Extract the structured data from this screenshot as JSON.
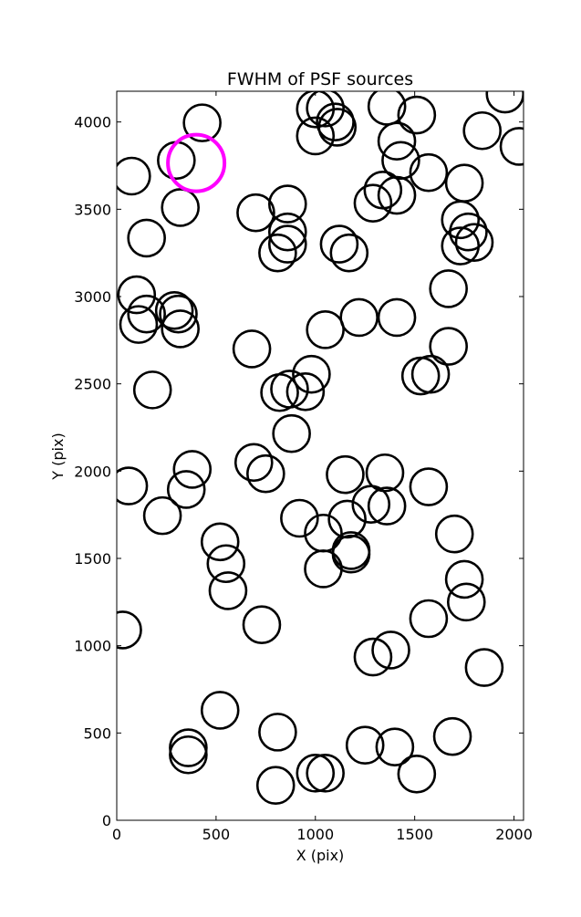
{
  "chart_data": {
    "type": "scatter",
    "title": "FWHM of PSF sources",
    "xlabel": "X (pix)",
    "ylabel": "Y (pix)",
    "xlim": [
      0,
      2048
    ],
    "ylim": [
      0,
      4176
    ],
    "xticks": [
      0,
      500,
      1000,
      1500,
      2000
    ],
    "yticks": [
      0,
      500,
      1000,
      1500,
      2000,
      2500,
      3000,
      3500,
      4000
    ],
    "marker": "open circle",
    "grid": false,
    "series": [
      {
        "color": "#000000",
        "points": [
          [
            430,
            3995
          ],
          [
            1000,
            4075
          ],
          [
            1050,
            4080
          ],
          [
            1100,
            4000
          ],
          [
            1110,
            3970
          ],
          [
            1360,
            4090
          ],
          [
            1510,
            4040
          ],
          [
            1955,
            4160
          ],
          [
            2025,
            3860
          ],
          [
            1840,
            3950
          ],
          [
            75,
            3690
          ],
          [
            300,
            3780
          ],
          [
            320,
            3510
          ],
          [
            150,
            3335
          ],
          [
            1000,
            3920
          ],
          [
            1410,
            3890
          ],
          [
            1430,
            3780
          ],
          [
            1570,
            3710
          ],
          [
            1750,
            3650
          ],
          [
            1340,
            3610
          ],
          [
            1410,
            3580
          ],
          [
            1290,
            3535
          ],
          [
            700,
            3480
          ],
          [
            860,
            3530
          ],
          [
            860,
            3370
          ],
          [
            860,
            3300
          ],
          [
            810,
            3250
          ],
          [
            1120,
            3300
          ],
          [
            1170,
            3250
          ],
          [
            1730,
            3440
          ],
          [
            1730,
            3290
          ],
          [
            1770,
            3370
          ],
          [
            1800,
            3310
          ],
          [
            100,
            3010
          ],
          [
            150,
            2900
          ],
          [
            110,
            2840
          ],
          [
            290,
            2920
          ],
          [
            310,
            2900
          ],
          [
            320,
            2815
          ],
          [
            1050,
            2810
          ],
          [
            1220,
            2880
          ],
          [
            1410,
            2880
          ],
          [
            1670,
            3045
          ],
          [
            1670,
            2715
          ],
          [
            680,
            2700
          ],
          [
            180,
            2465
          ],
          [
            1530,
            2545
          ],
          [
            1580,
            2555
          ],
          [
            980,
            2555
          ],
          [
            820,
            2450
          ],
          [
            870,
            2470
          ],
          [
            950,
            2455
          ],
          [
            880,
            2215
          ],
          [
            60,
            1915
          ],
          [
            690,
            2050
          ],
          [
            750,
            1985
          ],
          [
            380,
            2010
          ],
          [
            350,
            1895
          ],
          [
            230,
            1745
          ],
          [
            1150,
            1980
          ],
          [
            1350,
            1990
          ],
          [
            1360,
            1800
          ],
          [
            1280,
            1810
          ],
          [
            1570,
            1910
          ],
          [
            920,
            1730
          ],
          [
            1040,
            1645
          ],
          [
            1160,
            1725
          ],
          [
            1700,
            1640
          ],
          [
            520,
            1595
          ],
          [
            550,
            1470
          ],
          [
            560,
            1315
          ],
          [
            1180,
            1545
          ],
          [
            1180,
            1525
          ],
          [
            1040,
            1440
          ],
          [
            1750,
            1380
          ],
          [
            1760,
            1250
          ],
          [
            1570,
            1155
          ],
          [
            30,
            1090
          ],
          [
            730,
            1120
          ],
          [
            1290,
            935
          ],
          [
            1380,
            975
          ],
          [
            1850,
            875
          ],
          [
            520,
            630
          ],
          [
            810,
            505
          ],
          [
            1690,
            480
          ],
          [
            360,
            415
          ],
          [
            360,
            375
          ],
          [
            1400,
            420
          ],
          [
            1250,
            430
          ],
          [
            1000,
            270
          ],
          [
            1050,
            270
          ],
          [
            1510,
            265
          ],
          [
            800,
            200
          ]
        ]
      },
      {
        "color": "#ff00ff",
        "points": [
          [
            400,
            3765
          ]
        ]
      }
    ]
  }
}
